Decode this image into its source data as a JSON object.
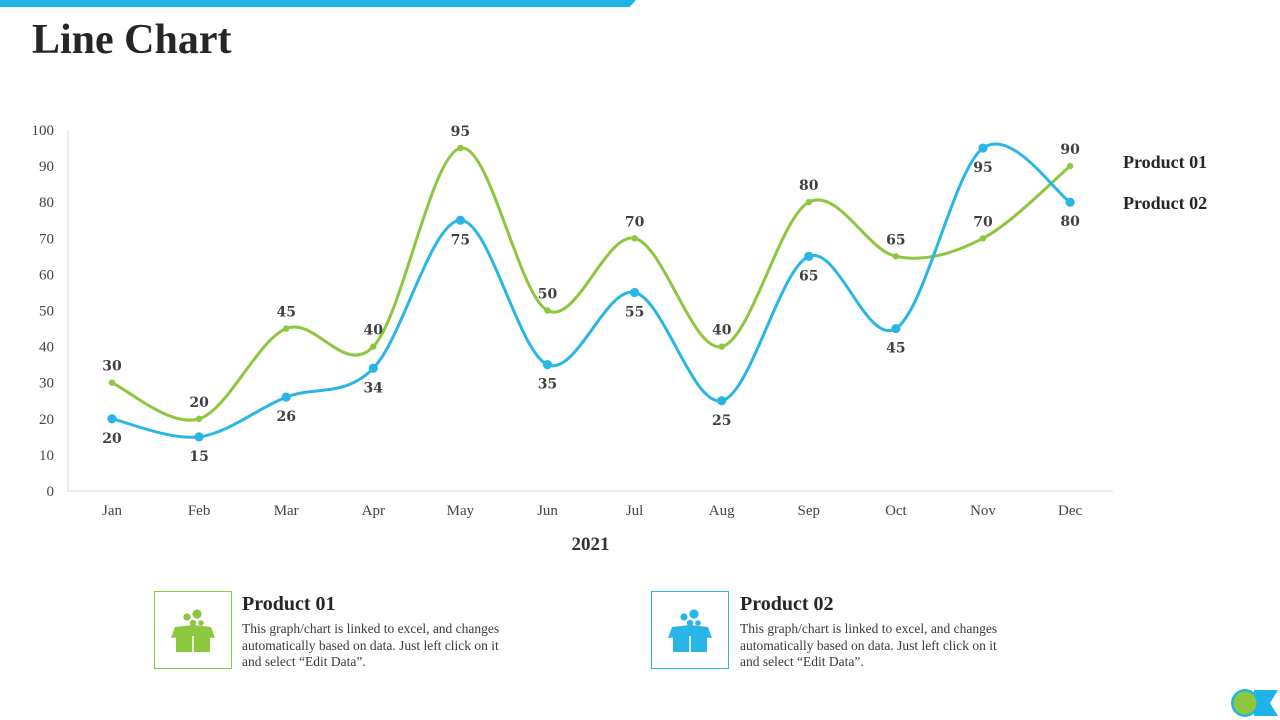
{
  "title": "Line Chart",
  "colors": {
    "product01": "#8dc63f",
    "product02": "#29b6e6",
    "accent": "#1eb4e8"
  },
  "chart_data": {
    "type": "line",
    "title": "",
    "xlabel": "2021",
    "ylabel": "",
    "ylim": [
      0,
      100
    ],
    "yticks": [
      0,
      10,
      20,
      30,
      40,
      50,
      60,
      70,
      80,
      90,
      100
    ],
    "categories": [
      "Jan",
      "Feb",
      "Mar",
      "Apr",
      "May",
      "Jun",
      "Jul",
      "Aug",
      "Sep",
      "Oct",
      "Nov",
      "Dec"
    ],
    "series": [
      {
        "name": "Product 01",
        "color": "#8dc63f",
        "values": [
          30,
          20,
          45,
          40,
          95,
          50,
          70,
          40,
          80,
          65,
          70,
          90
        ]
      },
      {
        "name": "Product 02",
        "color": "#29b6e6",
        "values": [
          20,
          15,
          26,
          34,
          75,
          35,
          55,
          25,
          65,
          45,
          95,
          80
        ]
      }
    ],
    "legend": "right",
    "grid": false
  },
  "cards": [
    {
      "title": "Product 01",
      "text": "This graph/chart is linked to excel, and changes automatically based on data. Just left click on it and select “Edit Data”.",
      "icon": "gift-box-icon"
    },
    {
      "title": "Product 02",
      "text": "This graph/chart is linked to excel, and changes automatically based on data. Just left click on it and select “Edit Data”.",
      "icon": "gift-box-icon"
    }
  ]
}
